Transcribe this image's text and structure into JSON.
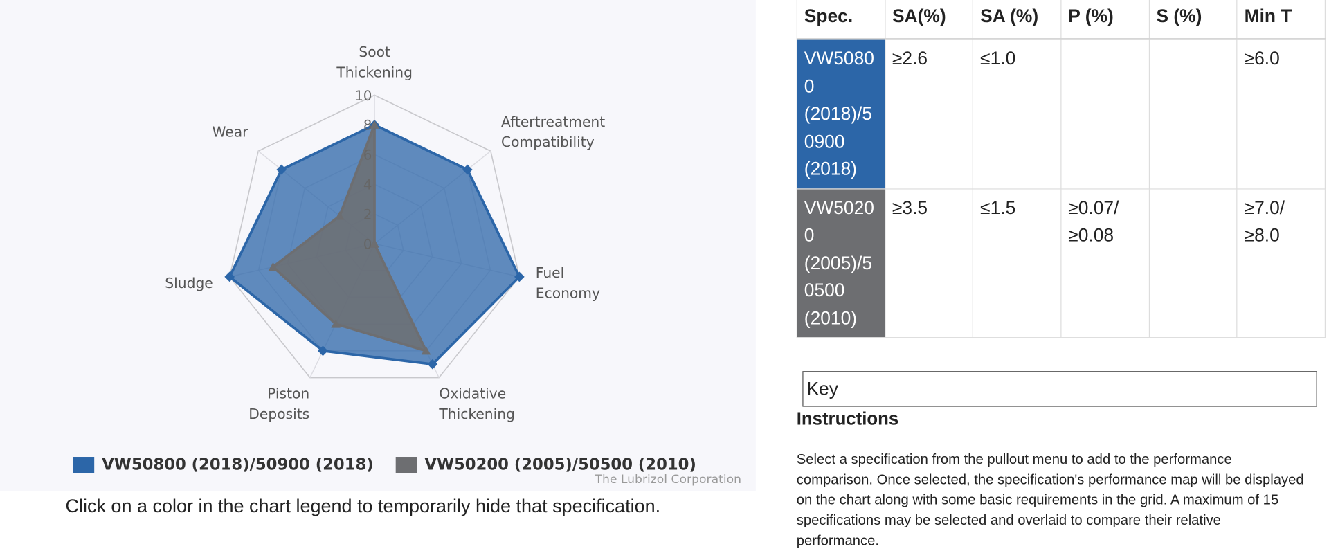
{
  "chart_data": {
    "type": "radar",
    "categories": [
      "Soot Thickening",
      "Aftertreatment Compatibility",
      "Fuel Economy",
      "Oxidative Thickening",
      "Piston Deposits",
      "Sludge",
      "Wear"
    ],
    "series": [
      {
        "name": "VW50800 (2018)/50900 (2018)",
        "color": "#2c66a8",
        "values": [
          8,
          8,
          10,
          9,
          8,
          10,
          8
        ]
      },
      {
        "name": "VW50200 (2005)/50500 (2010)",
        "color": "#6d6e71",
        "values": [
          8,
          0,
          0,
          8,
          6,
          7,
          3
        ]
      }
    ],
    "ylim": [
      0,
      10
    ],
    "yticks": [
      0,
      2,
      4,
      6,
      8,
      10
    ],
    "grid": true,
    "credit": "The Lubrizol Corporation"
  },
  "caption": "Click on a color in the chart legend to temporarily hide that specification.",
  "table": {
    "header": [
      "Spec.",
      "SA(%)",
      "SA (%)",
      "P (%)",
      "S (%)",
      "Min T"
    ],
    "rows": [
      [
        "VW50800 (2018)/50900 (2018)",
        "≥2.6",
        "≤1.0",
        null,
        null,
        "≥6.0"
      ],
      [
        "VW50200 (2005)/50500 (2010)",
        "≥3.5",
        "≤1.5",
        "≥0.07/ ≥0.08",
        null,
        "≥7.0/ ≥8.0"
      ]
    ]
  },
  "key": "Key",
  "instructions": {
    "title": "Instructions",
    "text": "Select a specification from the pullout menu to add to the performance comparison. Once selected, the specification's performance map will be displayed on the chart along with some basic requirements in the grid. A maximum of 15 specifications may be selected and overlaid to compare their relative performance."
  }
}
